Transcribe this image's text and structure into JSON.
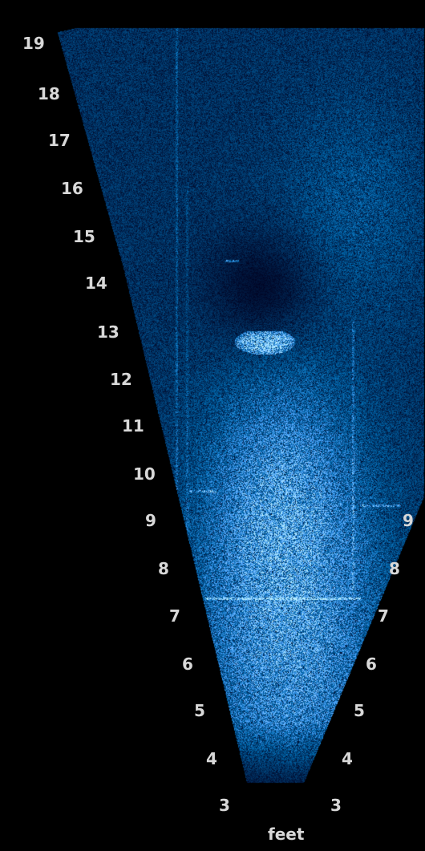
{
  "left_scale": [
    "19",
    "18",
    "17",
    "16",
    "15",
    "14",
    "13",
    "12",
    "11",
    "10",
    "9",
    "8",
    "7",
    "6",
    "5",
    "4",
    "3"
  ],
  "right_scale": [
    "9",
    "8",
    "7",
    "6",
    "5",
    "4",
    "3"
  ],
  "unit": "feet",
  "colors": {
    "background": "#000000",
    "sonar_tint": "#3aa8ff",
    "label": "#d8d8d8"
  }
}
